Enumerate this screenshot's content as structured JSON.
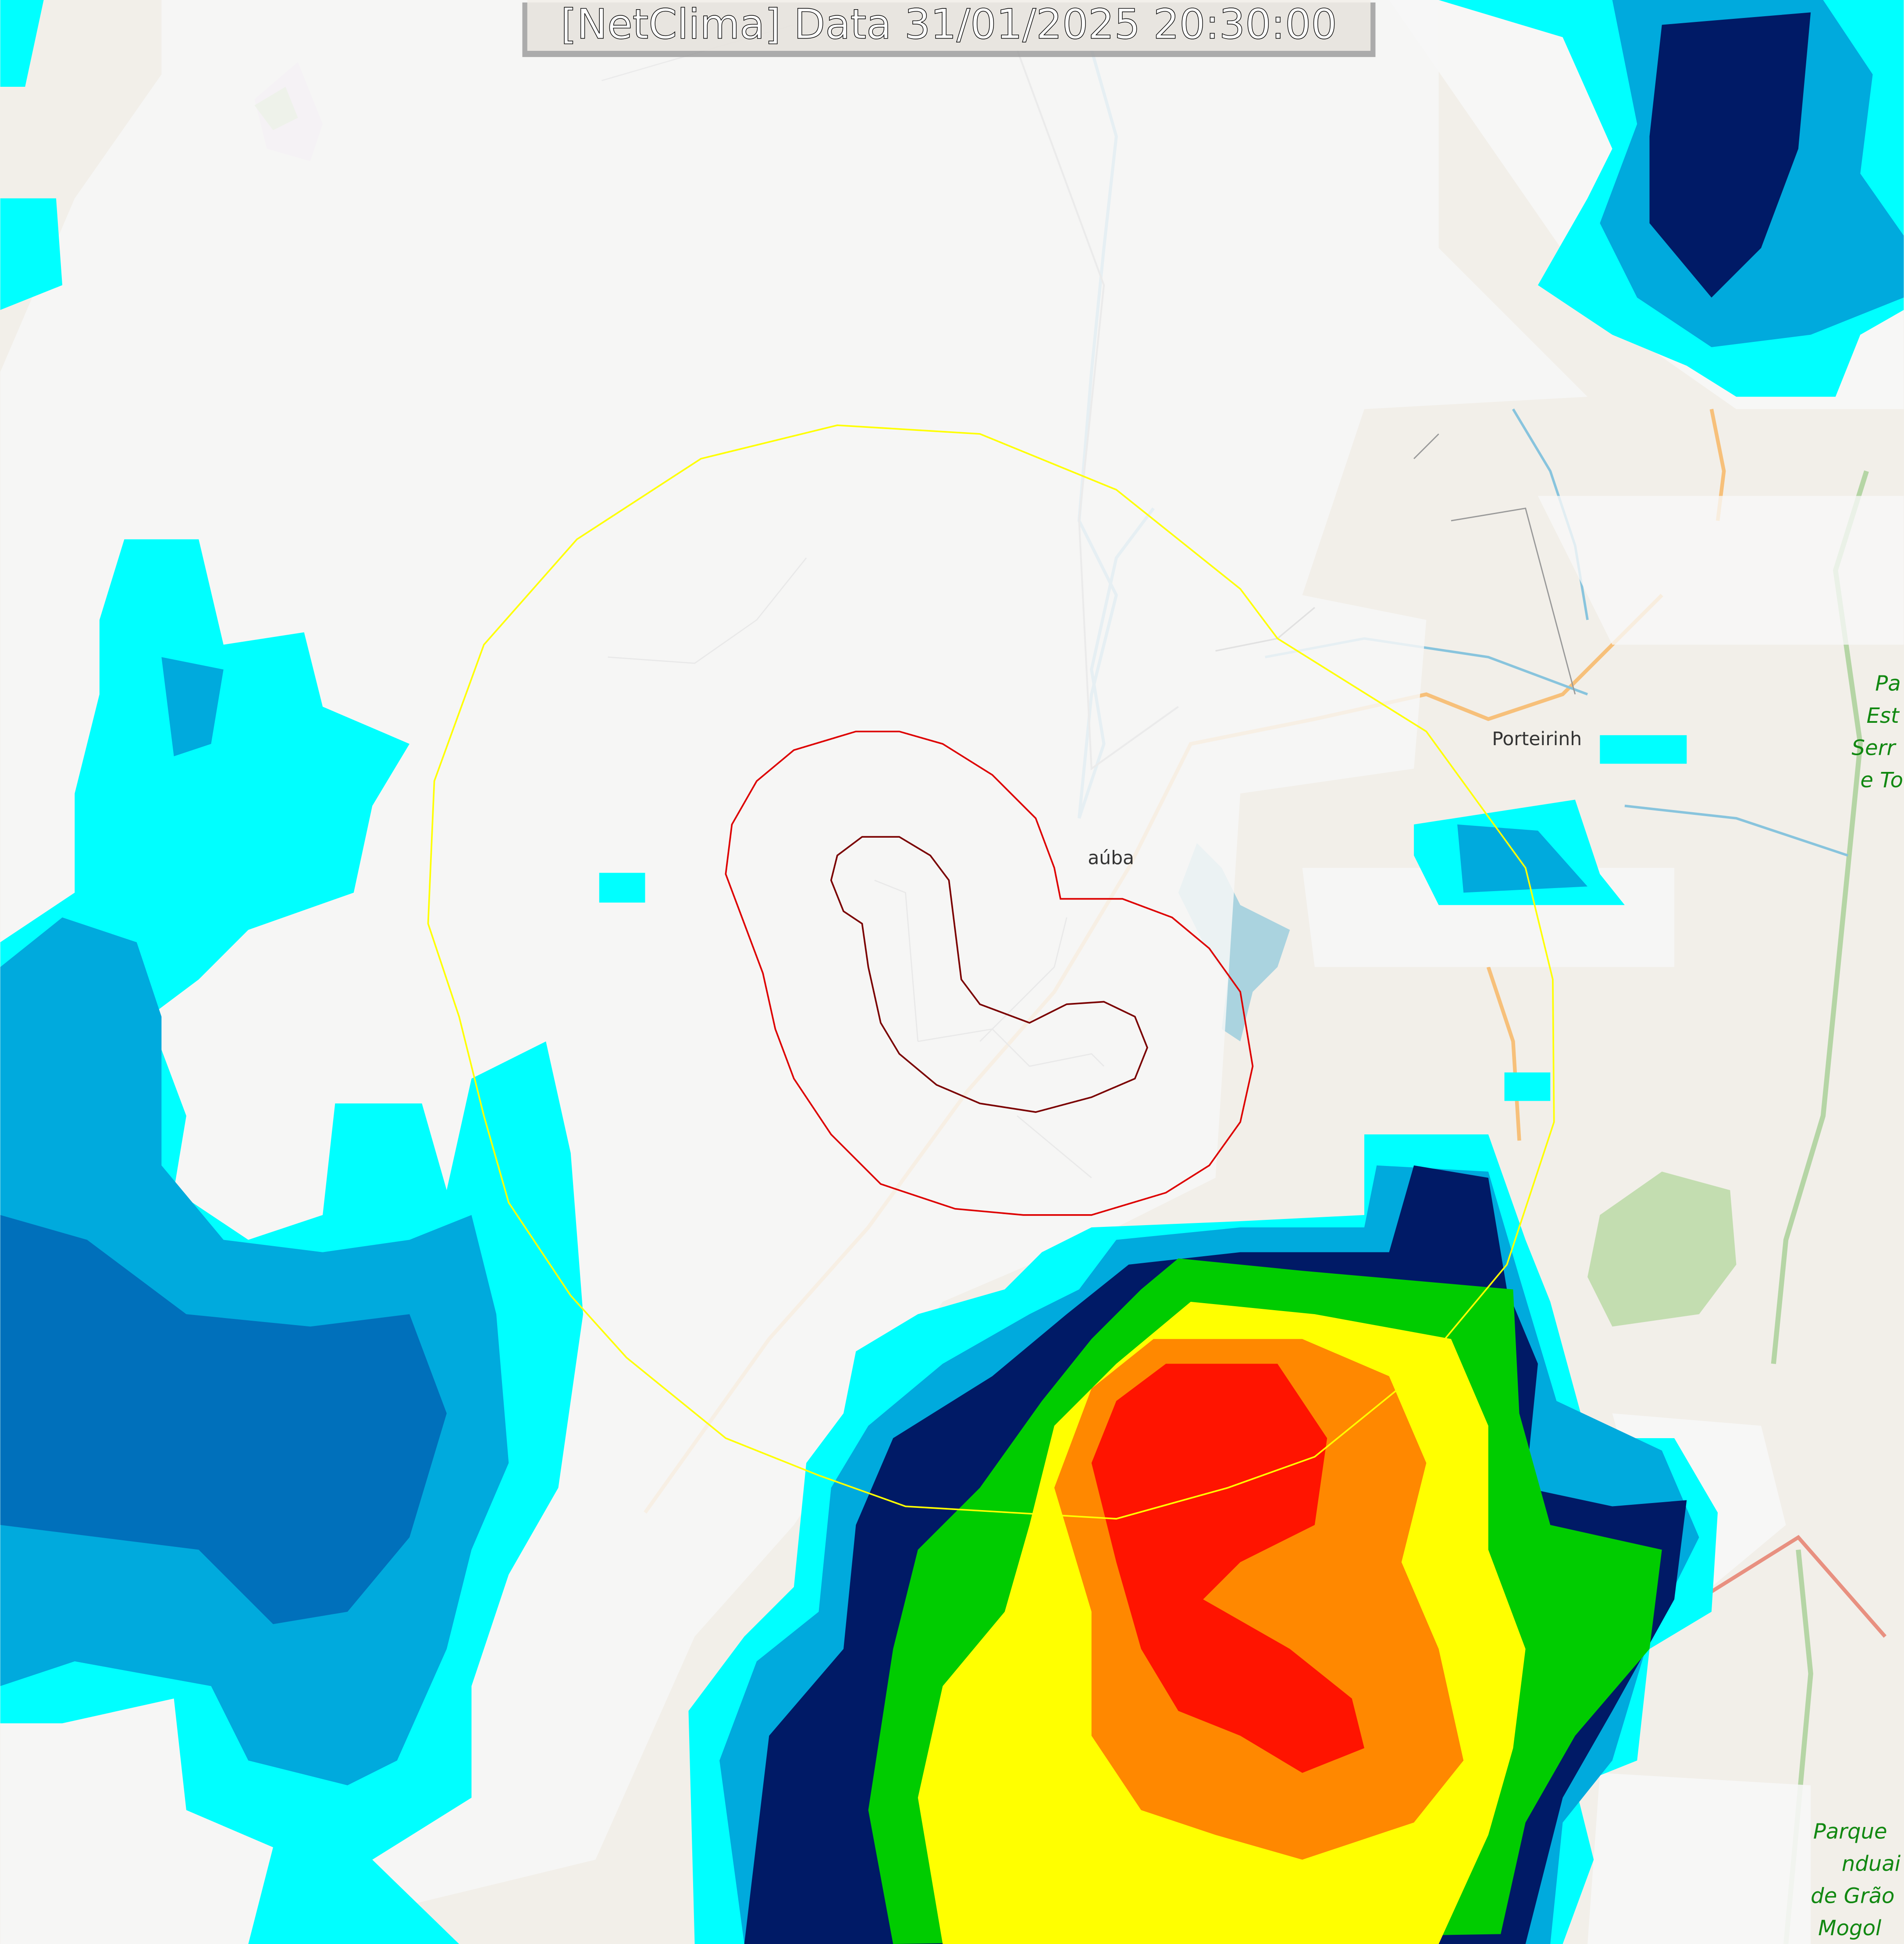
{
  "title": "[NetClima] Data 31/01/2025 20:30:00",
  "places": {
    "porteirinha": "Porteirinh",
    "janauba": "aúba",
    "park_top": [
      "Pa",
      "Est",
      "Serr",
      "e To"
    ],
    "park_bottom": [
      "Parque",
      "nduai",
      "de Grão",
      "Mogol"
    ]
  },
  "colors": {
    "map_bg": "#f2efe9",
    "cloud": "#f7f7f7",
    "rain_light": "#00ffff",
    "rain_mid": "#00aadd",
    "rain_blue": "#0070bb",
    "rain_dark": "#001a66",
    "green": "#00cc00",
    "yellow": "#ffff00",
    "orange": "#ff8800",
    "red": "#ff0000",
    "range_ring_outer": "#ffff00",
    "range_ring_inner": "#dd0000",
    "water": "#aad3df",
    "road": "#f7c07a",
    "park": "#c3ddb0",
    "park_label": "#118811"
  },
  "layers": [
    "basemap",
    "radar-reflectivity",
    "range-rings",
    "timestamp-label"
  ]
}
